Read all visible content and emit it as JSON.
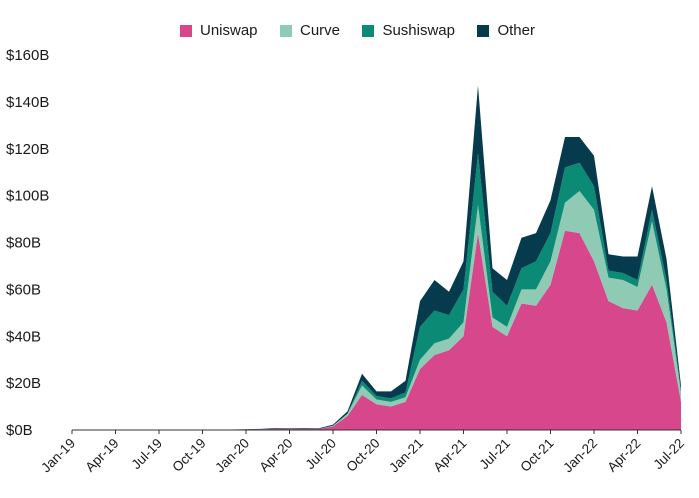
{
  "chart_data": {
    "type": "area",
    "stacked": true,
    "title": "",
    "xlabel": "",
    "ylabel": "",
    "ylim": [
      0,
      160
    ],
    "y_ticks": [
      0,
      20,
      40,
      60,
      80,
      100,
      120,
      140,
      160
    ],
    "y_tick_labels": [
      "$0B",
      "$20B",
      "$40B",
      "$60B",
      "$80B",
      "$100B",
      "$120B",
      "$140B",
      "$160B"
    ],
    "x_tick_labels": [
      "Jan-19",
      "Apr-19",
      "Jul-19",
      "Oct-19",
      "Jan-20",
      "Apr-20",
      "Jul-20",
      "Oct-20",
      "Jan-21",
      "Apr-21",
      "Jul-21",
      "Oct-21",
      "Jan-22",
      "Apr-22",
      "Jul-22"
    ],
    "legend_position": "top",
    "grid": false,
    "x": [
      "2019-01",
      "2019-02",
      "2019-03",
      "2019-04",
      "2019-05",
      "2019-06",
      "2019-07",
      "2019-08",
      "2019-09",
      "2019-10",
      "2019-11",
      "2019-12",
      "2020-01",
      "2020-02",
      "2020-03",
      "2020-04",
      "2020-05",
      "2020-06",
      "2020-07",
      "2020-08",
      "2020-09",
      "2020-10",
      "2020-11",
      "2020-12",
      "2021-01",
      "2021-02",
      "2021-03",
      "2021-04",
      "2021-05",
      "2021-06",
      "2021-07",
      "2021-08",
      "2021-09",
      "2021-10",
      "2021-11",
      "2021-12",
      "2022-01",
      "2022-02",
      "2022-03",
      "2022-04",
      "2022-05",
      "2022-06",
      "2022-07"
    ],
    "series": [
      {
        "name": "Uniswap",
        "color": "#d6478b",
        "values": [
          0.05,
          0.05,
          0.05,
          0.05,
          0.05,
          0.05,
          0.1,
          0.1,
          0.1,
          0.1,
          0.1,
          0.1,
          0.2,
          0.3,
          0.5,
          0.4,
          0.5,
          0.4,
          1.5,
          6,
          15,
          11,
          10,
          12,
          26,
          32,
          34,
          40,
          84,
          44,
          40,
          54,
          53,
          62,
          85,
          84,
          72,
          55,
          52,
          51,
          62,
          46,
          12
        ]
      },
      {
        "name": "Curve",
        "color": "#8fcab4",
        "values": [
          0,
          0,
          0,
          0,
          0,
          0,
          0,
          0,
          0,
          0,
          0,
          0,
          0,
          0,
          0,
          0,
          0,
          0,
          0.3,
          1,
          4,
          2,
          2,
          2,
          4,
          5,
          5,
          6,
          12,
          4,
          4,
          6,
          7,
          10,
          12,
          18,
          22,
          10,
          12,
          10,
          27,
          14,
          4
        ]
      },
      {
        "name": "Sushiswap",
        "color": "#0b8a76",
        "values": [
          0,
          0,
          0,
          0,
          0,
          0,
          0,
          0,
          0,
          0,
          0,
          0,
          0,
          0,
          0,
          0,
          0,
          0,
          0,
          0,
          2,
          1.5,
          1.5,
          2,
          14,
          14,
          10,
          14,
          22,
          11,
          9,
          9,
          12,
          12,
          15,
          12,
          10,
          3,
          3,
          3,
          5,
          4,
          1
        ]
      },
      {
        "name": "Other",
        "color": "#063b4d",
        "values": [
          0.05,
          0.05,
          0.05,
          0.05,
          0.05,
          0.05,
          0.05,
          0.05,
          0.05,
          0.05,
          0.05,
          0.1,
          0.1,
          0.2,
          0.3,
          0.3,
          0.3,
          0.3,
          0.5,
          1,
          3,
          2,
          3,
          5,
          11,
          13,
          10,
          12,
          29,
          10,
          11,
          13,
          12,
          14,
          13,
          11,
          13,
          7,
          7,
          10,
          10,
          9,
          2
        ]
      }
    ]
  }
}
